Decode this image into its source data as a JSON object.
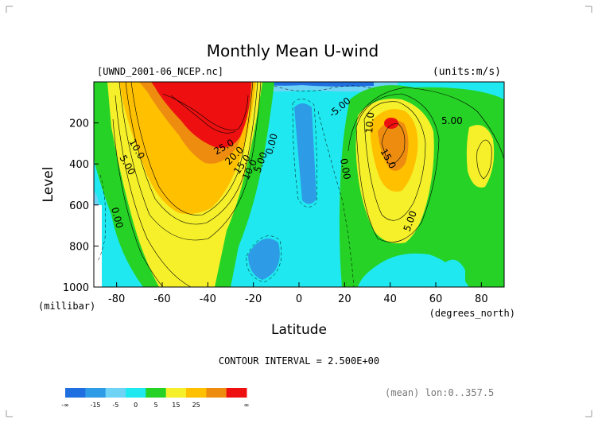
{
  "chart_data": {
    "type": "contour",
    "title": "Monthly Mean U-wind",
    "source_label": "[UWND_2001-06_NCEP.nc]",
    "units_label": "(units:m/s)",
    "xlabel": "Latitude",
    "x_units": "(degrees_north)",
    "ylabel": "Level",
    "y_units": "(millibar)",
    "xlim": [
      -90,
      90
    ],
    "ylim": [
      1000,
      0
    ],
    "x_ticks": [
      -80,
      -60,
      -40,
      -20,
      0,
      20,
      40,
      60,
      80
    ],
    "y_ticks": [
      200,
      400,
      600,
      800,
      1000
    ],
    "contour_interval_text": "CONTOUR INTERVAL = 2.500E+00",
    "footer_note": "(mean) lon:0..357.5",
    "contour_labels": [
      "10.0",
      "5.00",
      "0.00",
      "25.0",
      "20.0",
      "15.0",
      "10.0",
      "5.00",
      "0.00",
      "-5.00",
      "10.0",
      "15.0",
      "5.00",
      "5.00",
      "0.00"
    ],
    "colorbar": {
      "tick_labels": [
        "-∞",
        "-15",
        "-5",
        "0",
        "5",
        "15",
        "25",
        "∞"
      ],
      "colors": [
        "#1f6fe0",
        "#2e9be6",
        "#6fd3f5",
        "#1fe8f0",
        "#25d225",
        "#f5f02a",
        "#ffc000",
        "#ee8c10",
        "#ee1010"
      ]
    },
    "fields": {
      "southern_jet": {
        "lat_center": -30,
        "level_center": 200,
        "max_value": 30
      },
      "northern_jet": {
        "lat_center": 40,
        "level_center": 200,
        "max_value": 25
      }
    }
  }
}
